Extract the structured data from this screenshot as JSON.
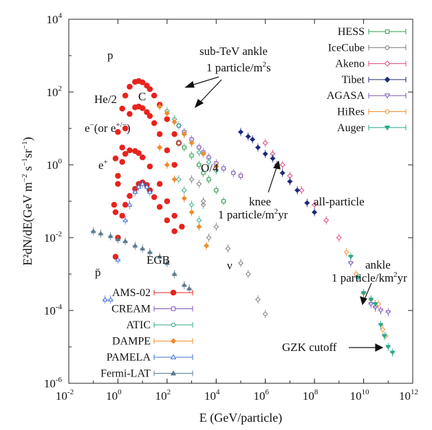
{
  "chart_data": {
    "type": "scatter",
    "xlabel": "E (GeV/particle)",
    "ylabel_base": "E²dN/dE(GeV m",
    "ylabel_exp1": "−2",
    "ylabel_mid1": " s",
    "ylabel_exp2": "−1",
    "ylabel_mid2": "sr",
    "ylabel_exp3": "−1",
    "ylabel_end": ")",
    "x_scale": "log",
    "y_scale": "log",
    "xlim": [
      0.01,
      1000000000000.0
    ],
    "ylim": [
      1e-06,
      10000.0
    ],
    "x_ticks": [
      {
        "v": 0.01,
        "base": "10",
        "exp": "-2"
      },
      {
        "v": 1,
        "base": "10",
        "exp": "0"
      },
      {
        "v": 100,
        "base": "10",
        "exp": "2"
      },
      {
        "v": 10000.0,
        "base": "10",
        "exp": "4"
      },
      {
        "v": 1000000.0,
        "base": "10",
        "exp": "6"
      },
      {
        "v": 100000000.0,
        "base": "10",
        "exp": "8"
      },
      {
        "v": 10000000000.0,
        "base": "10",
        "exp": "10"
      },
      {
        "v": 1000000000000.0,
        "base": "10",
        "exp": "12"
      }
    ],
    "y_ticks": [
      {
        "v": 1e-06,
        "base": "10",
        "exp": "-6"
      },
      {
        "v": 0.0001,
        "base": "10",
        "exp": "-4"
      },
      {
        "v": 0.01,
        "base": "10",
        "exp": "-2"
      },
      {
        "v": 1,
        "base": "10",
        "exp": "0"
      },
      {
        "v": 100,
        "base": "10",
        "exp": "2"
      },
      {
        "v": 10000.0,
        "base": "10",
        "exp": "4"
      }
    ],
    "series": [
      {
        "name": "AMS-02",
        "color": "#e8231d",
        "marker": "dot",
        "legend": "bottom-left",
        "points": [
          [
            0.8,
            1.5
          ],
          [
            1,
            8
          ],
          [
            1.5,
            35
          ],
          [
            2,
            80
          ],
          [
            3,
            140
          ],
          [
            5,
            190
          ],
          [
            7,
            200
          ],
          [
            10,
            185
          ],
          [
            15,
            150
          ],
          [
            20,
            120
          ],
          [
            30,
            80
          ],
          [
            50,
            45
          ],
          [
            100,
            18
          ],
          [
            200,
            7
          ],
          [
            300,
            4
          ],
          [
            0.7,
            0.08
          ],
          [
            1,
            0.5
          ],
          [
            1.5,
            3
          ],
          [
            2,
            10
          ],
          [
            3,
            25
          ],
          [
            5,
            38
          ],
          [
            7,
            40
          ],
          [
            10,
            36
          ],
          [
            15,
            28
          ],
          [
            20,
            22
          ],
          [
            30,
            14
          ],
          [
            50,
            7
          ],
          [
            100,
            2.5
          ],
          [
            200,
            1
          ],
          [
            0.8,
            0.003
          ],
          [
            1,
            0.01
          ],
          [
            1.5,
            0.04
          ],
          [
            2,
            0.08
          ],
          [
            3,
            0.14
          ],
          [
            5,
            0.22
          ],
          [
            7,
            0.3
          ],
          [
            10,
            0.33
          ],
          [
            15,
            0.28
          ],
          [
            20,
            0.2
          ],
          [
            30,
            0.13
          ],
          [
            50,
            0.07
          ],
          [
            100,
            0.03
          ],
          [
            200,
            0.015
          ],
          [
            0.8,
            0.05
          ],
          [
            1,
            0.3
          ],
          [
            1.5,
            1.2
          ],
          [
            2,
            2
          ],
          [
            3,
            2.5
          ],
          [
            5,
            2.4
          ],
          [
            7,
            2.1
          ],
          [
            10,
            1.6
          ],
          [
            20,
            0.9
          ],
          [
            50,
            0.3
          ],
          [
            100,
            0.1
          ],
          [
            200,
            0.04
          ],
          [
            400,
            0.02
          ]
        ]
      },
      {
        "name": "CREAM",
        "color": "#7b52b3",
        "marker": "square-open",
        "legend": "bottom-left",
        "points": [
          [
            300,
            12
          ],
          [
            500,
            8
          ],
          [
            1000,
            5
          ],
          [
            2000,
            3
          ],
          [
            3000,
            2.2
          ],
          [
            5000,
            1.6
          ],
          [
            10000,
            1.1
          ],
          [
            20000,
            0.8
          ],
          [
            50000,
            0.6
          ],
          [
            100000,
            0.5
          ]
        ]
      },
      {
        "name": "ATIC",
        "color": "#2aa88a",
        "marker": "circle-open",
        "legend": "bottom-left",
        "points": [
          [
            100,
            30
          ],
          [
            200,
            18
          ],
          [
            300,
            12
          ],
          [
            500,
            7
          ],
          [
            1000,
            4
          ],
          [
            2000,
            2.2
          ],
          [
            5000,
            1.2
          ],
          [
            10000,
            0.7
          ],
          [
            300,
            0.4
          ],
          [
            500,
            0.2
          ],
          [
            1000,
            0.08
          ],
          [
            2000,
            0.03
          ]
        ]
      },
      {
        "name": "DAMPE",
        "color": "#ef8c2a",
        "marker": "diamond",
        "legend": "bottom-left",
        "points": [
          [
            50,
            40
          ],
          [
            100,
            26
          ],
          [
            200,
            15
          ],
          [
            500,
            7
          ],
          [
            1000,
            4
          ],
          [
            3000,
            2
          ],
          [
            10000,
            0.9
          ],
          [
            50,
            3
          ],
          [
            100,
            1
          ],
          [
            200,
            0.4
          ],
          [
            500,
            0.12
          ],
          [
            1000,
            0.05
          ],
          [
            2000,
            0.02
          ],
          [
            4000,
            0.006
          ]
        ]
      },
      {
        "name": "PAMELA",
        "color": "#3c6fd0",
        "marker": "triangle-open",
        "legend": "bottom-left",
        "points": [
          [
            0.3,
            0.0002
          ],
          [
            0.5,
            0.0002
          ],
          [
            1,
            0.0025
          ],
          [
            2,
            0.03
          ],
          [
            3,
            0.08
          ],
          [
            5,
            0.18
          ],
          [
            7,
            0.25
          ],
          [
            10,
            0.3
          ],
          [
            15,
            0.25
          ],
          [
            20,
            0.18
          ]
        ]
      },
      {
        "name": "Fermi-LAT",
        "color": "#5a7a8c",
        "marker": "triangle",
        "legend": "bottom-left",
        "points": [
          [
            0.1,
            0.015
          ],
          [
            0.2,
            0.013
          ],
          [
            0.5,
            0.011
          ],
          [
            1,
            0.009
          ],
          [
            2,
            0.008
          ],
          [
            5,
            0.006
          ],
          [
            10,
            0.005
          ],
          [
            20,
            0.004
          ],
          [
            50,
            0.003
          ],
          [
            100,
            0.002
          ],
          [
            200,
            0.001
          ],
          [
            500,
            0.0005
          ],
          [
            800,
            0.0004
          ]
        ]
      },
      {
        "name": "HESS",
        "color": "#2a9d4a",
        "marker": "square-open",
        "legend": "top-right",
        "points": [
          [
            500,
            3
          ],
          [
            1000,
            1.8
          ],
          [
            2000,
            1
          ],
          [
            3000,
            0.6
          ],
          [
            5000,
            0.4
          ],
          [
            10000,
            0.2
          ],
          [
            20000,
            0.1
          ]
        ]
      },
      {
        "name": "IceCube",
        "color": "#777777",
        "marker": "circle-open",
        "legend": "top-right",
        "points": [
          [
            300,
            4
          ],
          [
            1000,
            0.4
          ],
          [
            3000,
            0.08
          ],
          [
            10000,
            0.02
          ],
          [
            30000,
            0.005
          ],
          [
            100000,
            0.002
          ],
          [
            200000,
            0.001
          ],
          [
            500000,
            0.0002
          ],
          [
            1000000,
            8e-05
          ],
          [
            5000,
            0.01
          ],
          [
            2000,
            0.3
          ],
          [
            3000,
            0.1
          ]
        ]
      },
      {
        "name": "Akeno",
        "color": "#e0447a",
        "marker": "diamond-open",
        "legend": "top-right",
        "points": [
          [
            1000000,
            4
          ],
          [
            2000000,
            2
          ],
          [
            5000000,
            1
          ],
          [
            10000000,
            0.5
          ],
          [
            30000000,
            0.2
          ],
          [
            100000000,
            0.08
          ],
          [
            300000000,
            0.03
          ],
          [
            1000000000,
            0.01
          ]
        ]
      },
      {
        "name": "Tibet",
        "color": "#1f2a7a",
        "marker": "diamond",
        "legend": "top-right",
        "points": [
          [
            100000,
            8
          ],
          [
            200000,
            6
          ],
          [
            300000,
            5
          ],
          [
            500000,
            3
          ],
          [
            1000000,
            2
          ],
          [
            2000000,
            1.5
          ],
          [
            3000000,
            1
          ],
          [
            5000000,
            0.6
          ],
          [
            10000000,
            0.35
          ],
          [
            20000000,
            0.2
          ],
          [
            50000000,
            0.09
          ],
          [
            100000000,
            0.05
          ]
        ]
      },
      {
        "name": "AGASA",
        "color": "#7b52b3",
        "marker": "triangle-down-open",
        "legend": "top-right",
        "points": [
          [
            3000000000,
            0.002
          ],
          [
            10000000000,
            0.0003
          ],
          [
            20000000000,
            0.00015
          ],
          [
            30000000000,
            0.00012
          ],
          [
            50000000000,
            0.0001
          ],
          [
            100000000000,
            9e-05
          ]
        ]
      },
      {
        "name": "HiRes",
        "color": "#ef8c2a",
        "marker": "circle-open",
        "legend": "top-right",
        "points": [
          [
            2000000000,
            0.004
          ],
          [
            5000000000,
            0.001
          ],
          [
            10000000000,
            0.0003
          ],
          [
            20000000000,
            0.0002
          ],
          [
            40000000000,
            0.00015
          ],
          [
            60000000000,
            3e-05
          ],
          [
            80000000000,
            2e-05
          ]
        ]
      },
      {
        "name": "Auger",
        "color": "#2aa88a",
        "marker": "triangle-down",
        "legend": "top-right",
        "points": [
          [
            3000000000,
            0.003
          ],
          [
            6000000000,
            0.0008
          ],
          [
            10000000000,
            0.0003
          ],
          [
            20000000000,
            0.0002
          ],
          [
            30000000000,
            0.00015
          ],
          [
            50000000000,
            4e-05
          ],
          [
            70000000000,
            2e-05
          ],
          [
            100000000000,
            1e-05
          ],
          [
            150000000000,
            7e-06
          ]
        ]
      }
    ],
    "annotations": {
      "p": "p",
      "he": "He/2",
      "c": "C",
      "electron_pre": "e",
      "electron_mid": "(or e",
      "electron_sup": "+/−",
      "electron_end": ")",
      "positron": "e",
      "oxygen": "O/4",
      "egb": "EGB",
      "antiproton": "p̄",
      "nu": "ν",
      "subtev_line1": "sub-TeV ankle",
      "subtev_line2_a": "1 particle/m",
      "subtev_line2_sup": "2",
      "subtev_line2_b": "s",
      "knee_line1": "knee",
      "knee_line2_a": "1 particle/m",
      "knee_line2_sup": "2",
      "knee_line2_b": "yr",
      "allparticle": "all-particle",
      "ankle_line1": "ankle",
      "ankle_line2_a": "1 particle/km",
      "ankle_line2_sup": "2",
      "ankle_line2_b": "yr",
      "gzk": "GZK cutoff"
    }
  }
}
